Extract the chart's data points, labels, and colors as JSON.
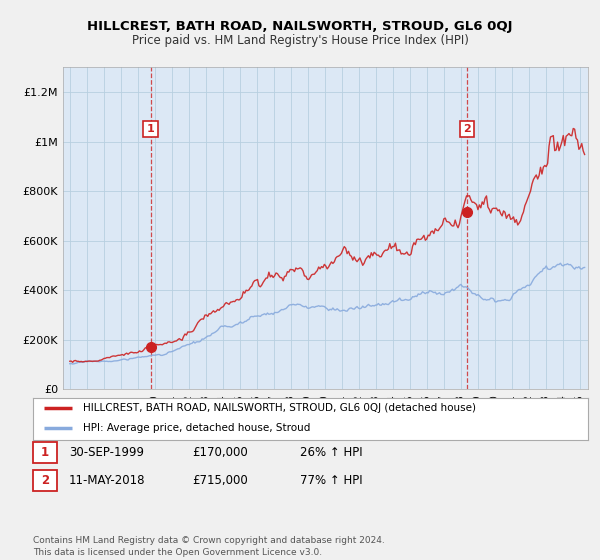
{
  "title": "HILLCREST, BATH ROAD, NAILSWORTH, STROUD, GL6 0QJ",
  "subtitle": "Price paid vs. HM Land Registry's House Price Index (HPI)",
  "ylabel_ticks": [
    "£0",
    "£200K",
    "£400K",
    "£600K",
    "£800K",
    "£1M",
    "£1.2M"
  ],
  "ylabel_values": [
    0,
    200000,
    400000,
    600000,
    800000,
    1000000,
    1200000
  ],
  "ylim": [
    0,
    1300000
  ],
  "xlim_start": 1994.6,
  "xlim_end": 2025.5,
  "red_color": "#cc2222",
  "blue_color": "#88aadd",
  "sale1_year": 1999.75,
  "sale1_price": 170000,
  "sale2_year": 2018.37,
  "sale2_price": 715000,
  "legend_label_red": "HILLCREST, BATH ROAD, NAILSWORTH, STROUD, GL6 0QJ (detached house)",
  "legend_label_blue": "HPI: Average price, detached house, Stroud",
  "annotation1_label": "1",
  "annotation1_date": "30-SEP-1999",
  "annotation1_price": "£170,000",
  "annotation1_hpi": "26% ↑ HPI",
  "annotation2_label": "2",
  "annotation2_date": "11-MAY-2018",
  "annotation2_price": "£715,000",
  "annotation2_hpi": "77% ↑ HPI",
  "footer": "Contains HM Land Registry data © Crown copyright and database right 2024.\nThis data is licensed under the Open Government Licence v3.0.",
  "background_color": "#f0f0f0",
  "plot_bg_color": "#dce8f5",
  "grid_color": "#b8cfe0"
}
